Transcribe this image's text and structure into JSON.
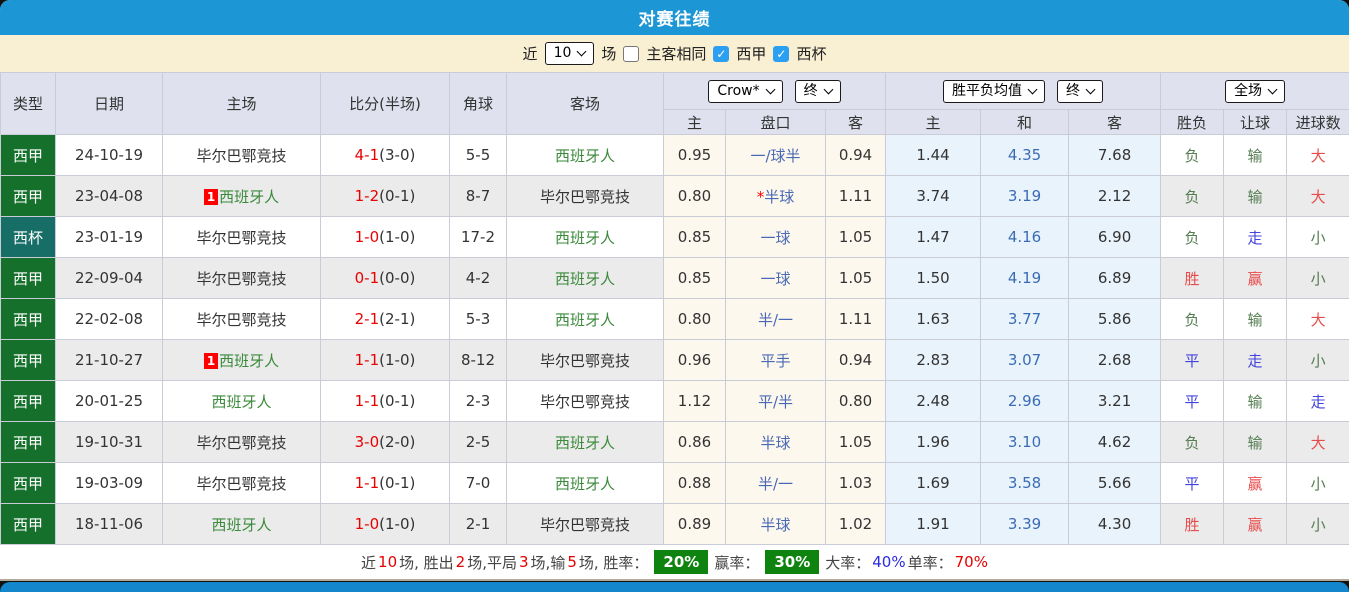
{
  "title": "对赛往绩",
  "filter": {
    "prefix_label": "近",
    "recent_count": "10",
    "suffix_label": "场",
    "same_venue_label": "主客相同",
    "same_venue_checked": false,
    "league1_label": "西甲",
    "league1_checked": true,
    "league2_label": "西杯",
    "league2_checked": true
  },
  "header": {
    "type": "类型",
    "date": "日期",
    "home": "主场",
    "score": "比分(半场)",
    "corner": "角球",
    "away": "客场",
    "crow_select": "Crow*",
    "crow_period_select": "终",
    "avg_select": "胜平负均值",
    "avg_period_select": "终",
    "scope_select": "全场",
    "sub": {
      "home": "主",
      "line": "盘口",
      "away": "客",
      "avg_home": "主",
      "avg_draw": "和",
      "avg_away": "客",
      "wdl": "胜负",
      "handicap": "让球",
      "goals": "进球数"
    }
  },
  "colors": {
    "title_bar": "#1c96d4",
    "filter_bar": "#f9efd2",
    "liga_green": "#15702b",
    "cup_teal": "#176e67",
    "score_red": "#ea0000",
    "team_green": "#3a8a3a",
    "line_blue": "#4a69b4",
    "avg_blue": "#3a6cb5",
    "result_green": "#557d52",
    "result_red": "#e84b4b",
    "result_blue": "#4343dd",
    "badge_green": "#0f830f"
  },
  "table": {
    "rows": [
      {
        "league": "西甲",
        "cup": false,
        "date": "24-10-19",
        "home": {
          "name": "毕尔巴鄂竞技",
          "green": false,
          "badge": ""
        },
        "score": {
          "ft": "4-1",
          "ht": "(3-0)"
        },
        "corner": "5-5",
        "away": {
          "name": "西班牙人",
          "green": true
        },
        "crow": {
          "home": "0.95",
          "line": "一/球半",
          "star": false,
          "away": "0.94"
        },
        "avg": {
          "home": "1.44",
          "draw": "4.35",
          "away": "7.68"
        },
        "results": [
          {
            "t": "负",
            "c": "g"
          },
          {
            "t": "输",
            "c": "g"
          },
          {
            "t": "大",
            "c": "r"
          }
        ]
      },
      {
        "league": "西甲",
        "cup": false,
        "date": "23-04-08",
        "home": {
          "name": "西班牙人",
          "green": true,
          "badge": "1"
        },
        "score": {
          "ft": "1-2",
          "ht": "(0-1)"
        },
        "corner": "8-7",
        "away": {
          "name": "毕尔巴鄂竞技",
          "green": false
        },
        "crow": {
          "home": "0.80",
          "line": "半球",
          "star": true,
          "away": "1.11"
        },
        "avg": {
          "home": "3.74",
          "draw": "3.19",
          "away": "2.12"
        },
        "results": [
          {
            "t": "负",
            "c": "g"
          },
          {
            "t": "输",
            "c": "g"
          },
          {
            "t": "大",
            "c": "r"
          }
        ]
      },
      {
        "league": "西杯",
        "cup": true,
        "date": "23-01-19",
        "home": {
          "name": "毕尔巴鄂竞技",
          "green": false,
          "badge": ""
        },
        "score": {
          "ft": "1-0",
          "ht": "(1-0)"
        },
        "corner": "17-2",
        "away": {
          "name": "西班牙人",
          "green": true
        },
        "crow": {
          "home": "0.85",
          "line": "一球",
          "star": false,
          "away": "1.05"
        },
        "avg": {
          "home": "1.47",
          "draw": "4.16",
          "away": "6.90"
        },
        "results": [
          {
            "t": "负",
            "c": "g"
          },
          {
            "t": "走",
            "c": "b"
          },
          {
            "t": "小",
            "c": "g"
          }
        ]
      },
      {
        "league": "西甲",
        "cup": false,
        "date": "22-09-04",
        "home": {
          "name": "毕尔巴鄂竞技",
          "green": false,
          "badge": ""
        },
        "score": {
          "ft": "0-1",
          "ht": "(0-0)"
        },
        "corner": "4-2",
        "away": {
          "name": "西班牙人",
          "green": true
        },
        "crow": {
          "home": "0.85",
          "line": "一球",
          "star": false,
          "away": "1.05"
        },
        "avg": {
          "home": "1.50",
          "draw": "4.19",
          "away": "6.89"
        },
        "results": [
          {
            "t": "胜",
            "c": "r"
          },
          {
            "t": "赢",
            "c": "r"
          },
          {
            "t": "小",
            "c": "g"
          }
        ]
      },
      {
        "league": "西甲",
        "cup": false,
        "date": "22-02-08",
        "home": {
          "name": "毕尔巴鄂竞技",
          "green": false,
          "badge": ""
        },
        "score": {
          "ft": "2-1",
          "ht": "(2-1)"
        },
        "corner": "5-3",
        "away": {
          "name": "西班牙人",
          "green": true
        },
        "crow": {
          "home": "0.80",
          "line": "半/一",
          "star": false,
          "away": "1.11"
        },
        "avg": {
          "home": "1.63",
          "draw": "3.77",
          "away": "5.86"
        },
        "results": [
          {
            "t": "负",
            "c": "g"
          },
          {
            "t": "输",
            "c": "g"
          },
          {
            "t": "大",
            "c": "r"
          }
        ]
      },
      {
        "league": "西甲",
        "cup": false,
        "date": "21-10-27",
        "home": {
          "name": "西班牙人",
          "green": true,
          "badge": "1"
        },
        "score": {
          "ft": "1-1",
          "ht": "(1-0)"
        },
        "corner": "8-12",
        "away": {
          "name": "毕尔巴鄂竞技",
          "green": false
        },
        "crow": {
          "home": "0.96",
          "line": "平手",
          "star": false,
          "away": "0.94"
        },
        "avg": {
          "home": "2.83",
          "draw": "3.07",
          "away": "2.68"
        },
        "results": [
          {
            "t": "平",
            "c": "b"
          },
          {
            "t": "走",
            "c": "b"
          },
          {
            "t": "小",
            "c": "g"
          }
        ]
      },
      {
        "league": "西甲",
        "cup": false,
        "date": "20-01-25",
        "home": {
          "name": "西班牙人",
          "green": true,
          "badge": ""
        },
        "score": {
          "ft": "1-1",
          "ht": "(0-1)"
        },
        "corner": "2-3",
        "away": {
          "name": "毕尔巴鄂竞技",
          "green": false
        },
        "crow": {
          "home": "1.12",
          "line": "平/半",
          "star": false,
          "away": "0.80"
        },
        "avg": {
          "home": "2.48",
          "draw": "2.96",
          "away": "3.21"
        },
        "results": [
          {
            "t": "平",
            "c": "b"
          },
          {
            "t": "输",
            "c": "g"
          },
          {
            "t": "走",
            "c": "b"
          }
        ]
      },
      {
        "league": "西甲",
        "cup": false,
        "date": "19-10-31",
        "home": {
          "name": "毕尔巴鄂竞技",
          "green": false,
          "badge": ""
        },
        "score": {
          "ft": "3-0",
          "ht": "(2-0)"
        },
        "corner": "2-5",
        "away": {
          "name": "西班牙人",
          "green": true
        },
        "crow": {
          "home": "0.86",
          "line": "半球",
          "star": false,
          "away": "1.05"
        },
        "avg": {
          "home": "1.96",
          "draw": "3.10",
          "away": "4.62"
        },
        "results": [
          {
            "t": "负",
            "c": "g"
          },
          {
            "t": "输",
            "c": "g"
          },
          {
            "t": "大",
            "c": "r"
          }
        ]
      },
      {
        "league": "西甲",
        "cup": false,
        "date": "19-03-09",
        "home": {
          "name": "毕尔巴鄂竞技",
          "green": false,
          "badge": ""
        },
        "score": {
          "ft": "1-1",
          "ht": "(0-1)"
        },
        "corner": "7-0",
        "away": {
          "name": "西班牙人",
          "green": true
        },
        "crow": {
          "home": "0.88",
          "line": "半/一",
          "star": false,
          "away": "1.03"
        },
        "avg": {
          "home": "1.69",
          "draw": "3.58",
          "away": "5.66"
        },
        "results": [
          {
            "t": "平",
            "c": "b"
          },
          {
            "t": "赢",
            "c": "r"
          },
          {
            "t": "小",
            "c": "g"
          }
        ]
      },
      {
        "league": "西甲",
        "cup": false,
        "date": "18-11-06",
        "home": {
          "name": "西班牙人",
          "green": true,
          "badge": ""
        },
        "score": {
          "ft": "1-0",
          "ht": "(1-0)"
        },
        "corner": "2-1",
        "away": {
          "name": "毕尔巴鄂竞技",
          "green": false
        },
        "crow": {
          "home": "0.89",
          "line": "半球",
          "star": false,
          "away": "1.02"
        },
        "avg": {
          "home": "1.91",
          "draw": "3.39",
          "away": "4.30"
        },
        "results": [
          {
            "t": "胜",
            "c": "r"
          },
          {
            "t": "赢",
            "c": "r"
          },
          {
            "t": "小",
            "c": "g"
          }
        ]
      }
    ]
  },
  "summary": {
    "segments": [
      {
        "t": "近 "
      },
      {
        "t": "10",
        "c": "r"
      },
      {
        "t": " 场, 胜出 "
      },
      {
        "t": "2",
        "c": "r"
      },
      {
        "t": " 场,平局 "
      },
      {
        "t": "3",
        "c": "r"
      },
      {
        "t": " 场,输 "
      },
      {
        "t": "5",
        "c": "r"
      },
      {
        "t": " 场, 胜率："
      },
      {
        "t": "20%",
        "c": "badge"
      },
      {
        "t": " 赢率："
      },
      {
        "t": "30%",
        "c": "badge"
      },
      {
        "t": " 大率： "
      },
      {
        "t": "40%",
        "c": "b"
      },
      {
        "t": " 单率： "
      },
      {
        "t": "70%",
        "c": "r"
      }
    ]
  }
}
